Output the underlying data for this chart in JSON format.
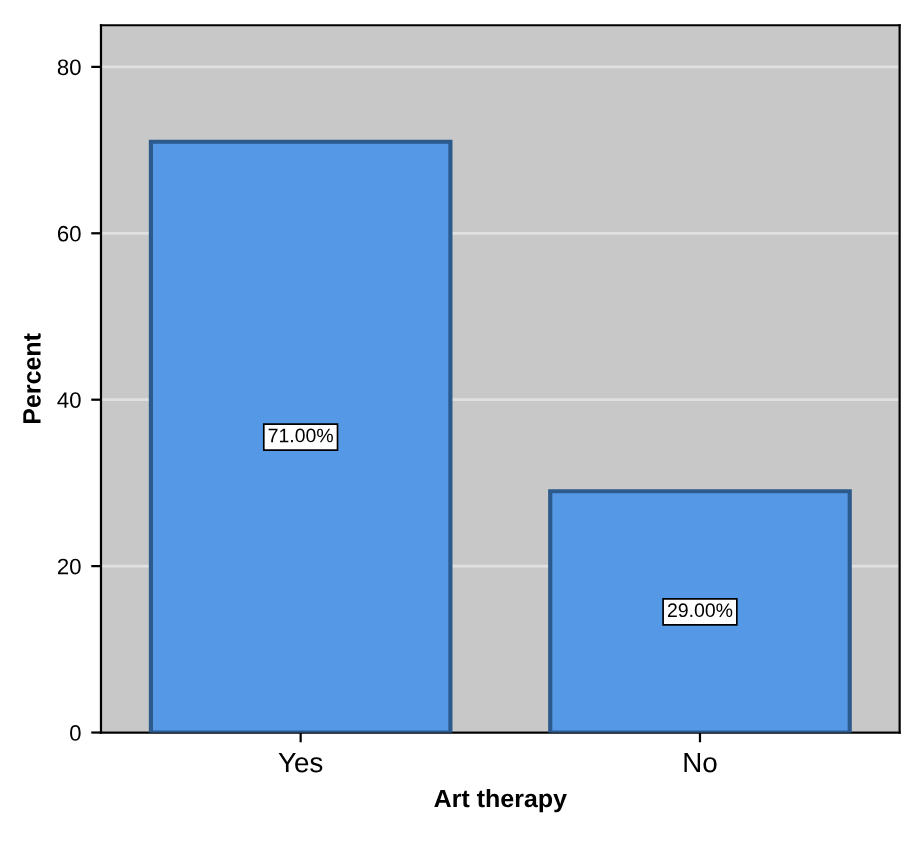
{
  "chart_data": {
    "type": "bar",
    "xlabel": "Art therapy",
    "ylabel": "Percent",
    "categories": [
      "Yes",
      "No"
    ],
    "values": [
      71,
      29
    ],
    "color": "#5599e6",
    "value_labels": [
      "71.00%",
      "29.00%"
    ],
    "ylim": [
      0,
      85
    ],
    "yticks": [
      0,
      20,
      40,
      60,
      80
    ],
    "grid": "y"
  }
}
